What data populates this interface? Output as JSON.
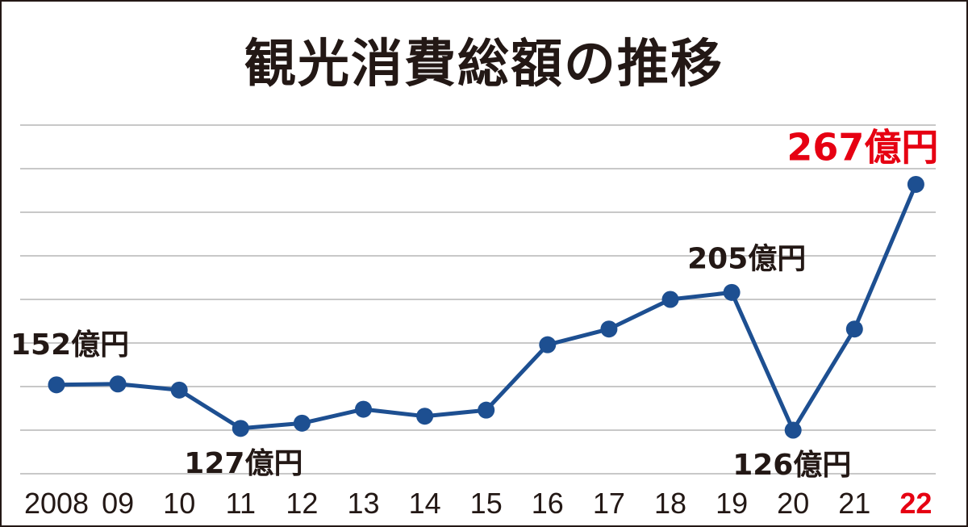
{
  "chart_data": {
    "type": "line",
    "title": "観光消費総額の推移",
    "categories": [
      "2008",
      "09",
      "10",
      "11",
      "12",
      "13",
      "14",
      "15",
      "16",
      "17",
      "18",
      "19",
      "20",
      "21",
      "22"
    ],
    "values": [
      152,
      152.5,
      149,
      127,
      130,
      138,
      134,
      137.5,
      175,
      184,
      201,
      205,
      126,
      184,
      267
    ],
    "highlight_index": 14,
    "annotations": [
      {
        "index": 0,
        "text": "152億円"
      },
      {
        "index": 3,
        "text": "127億円"
      },
      {
        "index": 11,
        "text": "205億円"
      },
      {
        "index": 12,
        "text": "126億円"
      },
      {
        "index": 14,
        "text": "267億円"
      }
    ],
    "ylim": [
      101,
      301
    ],
    "yticks": [
      101,
      126,
      151,
      176,
      201,
      226,
      251,
      276,
      301
    ],
    "grid": true,
    "xlabel": "",
    "ylabel": "",
    "colors": {
      "line": "#1d4f91",
      "highlight": "#e60012",
      "grid": "#c8c8c8",
      "text": "#231815"
    }
  }
}
